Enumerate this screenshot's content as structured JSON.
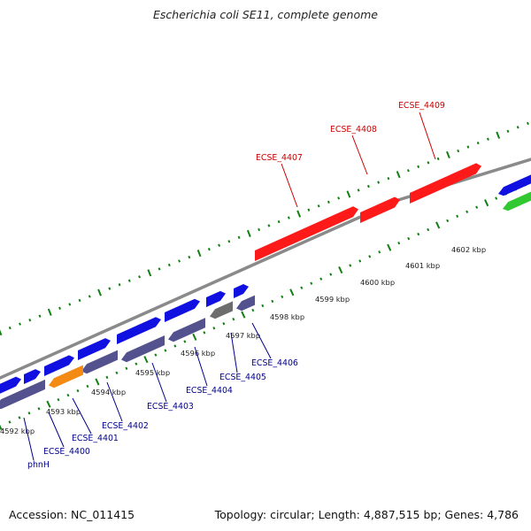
{
  "title": "Escherichia coli SE11, complete genome",
  "accession": "Accession: NC_011415",
  "summary": "Topology: circular; Length: 4,887,515 bp; Genes: 4,786",
  "colors": {
    "forward_cds": "#1010e0",
    "reverse_cds": "#53528f",
    "highlight": "#ff1a1a",
    "rna": "#f28a14",
    "other": "#6d6d6d",
    "rrna": "#32c832",
    "tick": "#138013",
    "backbone": "#8a8a8a",
    "label_blue": "#00008b",
    "label_red": "#cc0000"
  },
  "kbp_labels": [
    "4592 kbp",
    "4593 kbp",
    "4594 kbp",
    "4595 kbp",
    "4596 kbp",
    "4597 kbp",
    "4598 kbp",
    "4599 kbp",
    "4600 kbp",
    "4601 kbp",
    "4602 kbp"
  ],
  "gene_labels_blue": [
    "phnH",
    "ECSE_4400",
    "ECSE_4401",
    "ECSE_4402",
    "ECSE_4403",
    "ECSE_4404",
    "ECSE_4405",
    "ECSE_4406"
  ],
  "gene_labels_red": [
    "ECSE_4407",
    "ECSE_4408",
    "ECSE_4409"
  ]
}
